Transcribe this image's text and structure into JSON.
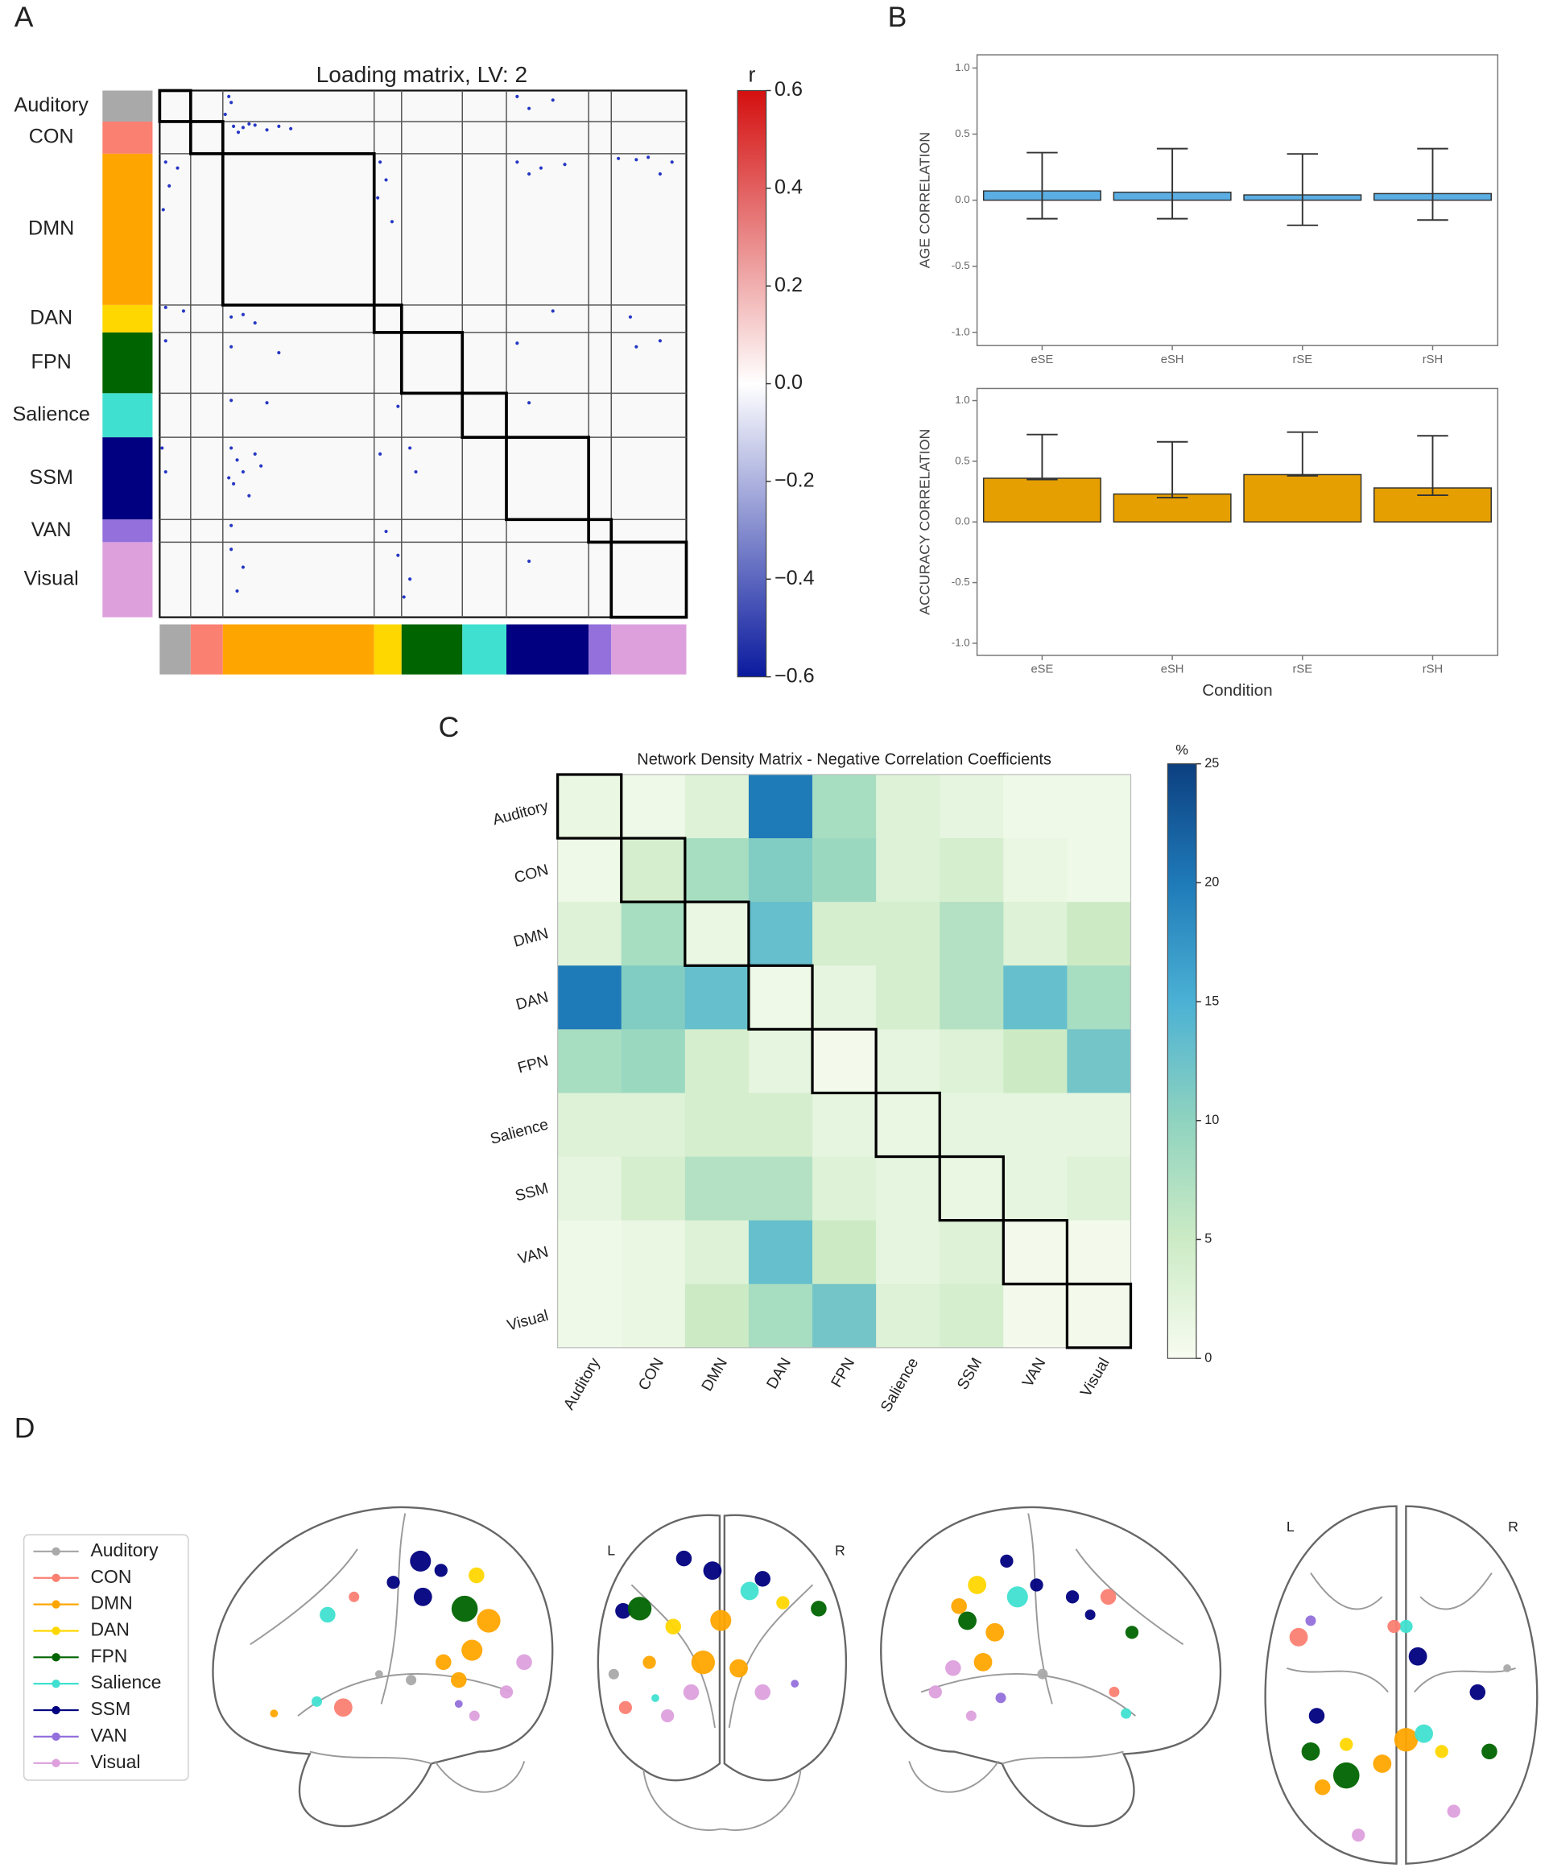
{
  "panel_labels": [
    "A",
    "B",
    "C",
    "D"
  ],
  "chart_data": [
    {
      "type": "matrix",
      "title": "Loading matrix, LV:  2",
      "networks": [
        "Auditory",
        "CON",
        "DMN",
        "DAN",
        "FPN",
        "Salience",
        "SSM",
        "VAN",
        "Visual"
      ],
      "colors": [
        "#a9a9a9",
        "#fa8072",
        "#ffa500",
        "#ffd700",
        "#006400",
        "#40e0d0",
        "#000080",
        "#9370db",
        "#dda0dd"
      ],
      "block_sizes": [
        26,
        27,
        127,
        23,
        51,
        37,
        69,
        19,
        63
      ],
      "points": {
        "row": [
          30,
          31,
          29,
          33,
          30,
          32,
          28,
          35,
          5,
          10,
          20,
          5,
          15,
          8,
          60,
          80,
          100,
          65,
          60,
          75,
          90,
          110,
          60,
          65,
          62,
          70,
          57,
          58,
          56,
          70,
          60,
          182,
          185,
          190,
          188,
          195,
          185,
          190,
          210,
          215,
          220,
          212,
          215,
          210,
          260,
          262,
          265,
          262,
          300,
          310,
          320,
          330,
          340,
          305,
          315,
          325,
          300,
          320,
          305,
          300,
          320,
          365,
          370,
          385,
          400,
          420,
          390,
          410,
          425,
          395
        ],
        "col": [
          62,
          70,
          80,
          90,
          100,
          110,
          75,
          66,
          58,
          60,
          55,
          300,
          310,
          330,
          5,
          8,
          3,
          15,
          185,
          190,
          183,
          195,
          300,
          320,
          340,
          310,
          385,
          400,
          410,
          420,
          430,
          5,
          20,
          60,
          70,
          80,
          330,
          395,
          5,
          60,
          100,
          300,
          400,
          420,
          60,
          90,
          200,
          310,
          60,
          65,
          70,
          62,
          75,
          80,
          85,
          58,
          2,
          5,
          185,
          210,
          215,
          60,
          190,
          60,
          70,
          65,
          200,
          210,
          205,
          310
        ]
      },
      "point_color": "#2536c4",
      "colorbar_label": "r",
      "clim": [
        -0.6,
        0.6
      ],
      "colormap": [
        "#0a1a9e",
        "#ffffff",
        "#d40f0f"
      ],
      "cticks": [
        0.6,
        0.4,
        0.2,
        {
          "value": 0,
          "label": "0.0"
        },
        {
          "value": -0.2,
          "label": "−0.2"
        },
        {
          "value": -0.4,
          "label": "−0.4"
        },
        {
          "value": -0.6,
          "label": "−0.6"
        }
      ]
    },
    {
      "type": "bar",
      "categories": [
        "eSE",
        "eSH",
        "rSE",
        "rSH"
      ],
      "values": [
        0.07,
        0.06,
        0.04,
        0.05
      ],
      "ci_low": [
        -0.14,
        -0.14,
        -0.19,
        -0.15
      ],
      "ci_high": [
        0.36,
        0.39,
        0.35,
        0.39
      ],
      "color": "#5aaee3",
      "y_label": "AGE CORRELATION",
      "ylim": [
        -1.1,
        1.1
      ],
      "yticks": [
        {
          "value": 1,
          "label": "1.0"
        },
        0.5,
        {
          "value": 0,
          "label": "0.0"
        },
        -0.5,
        {
          "value": -1,
          "label": "-1.0"
        }
      ]
    },
    {
      "type": "bar",
      "categories": [
        "eSE",
        "eSH",
        "rSE",
        "rSH"
      ],
      "values": [
        0.36,
        0.23,
        0.39,
        0.28
      ],
      "ci_low": [
        0.35,
        0.2,
        0.38,
        0.22
      ],
      "ci_high": [
        0.72,
        0.66,
        0.74,
        0.71
      ],
      "color": "#e69f00",
      "y_label": "ACCURACY CORRELATION",
      "x_label": "Condition",
      "ylim": [
        -1.1,
        1.1
      ],
      "yticks": [
        {
          "value": 1,
          "label": "1.0"
        },
        0.5,
        {
          "value": 0,
          "label": "0.0"
        },
        -0.5,
        {
          "value": -1,
          "label": "-1.0"
        }
      ]
    },
    {
      "type": "heatmap",
      "title": "Network Density Matrix - Negative Correlation Coefficients",
      "categories": [
        "Auditory",
        "CON",
        "DMN",
        "DAN",
        "FPN",
        "Salience",
        "SSM",
        "VAN",
        "Visual"
      ],
      "values": [
        [
          1.5,
          1,
          3,
          20,
          8,
          3,
          2,
          1,
          1
        ],
        [
          1,
          4,
          8,
          11,
          9,
          3,
          4,
          1.5,
          1
        ],
        [
          3,
          8,
          1.5,
          13,
          4,
          4,
          7,
          3,
          5
        ],
        [
          20,
          11,
          13,
          1,
          2,
          4,
          7,
          13,
          8
        ],
        [
          8,
          9,
          4,
          2,
          0.5,
          2,
          3,
          5,
          12
        ],
        [
          3,
          3,
          4,
          4,
          2,
          1.5,
          2,
          2,
          2
        ],
        [
          2,
          4,
          7,
          7,
          3,
          2,
          1.5,
          2,
          3
        ],
        [
          1,
          1.5,
          3,
          13,
          5,
          2,
          3,
          0.5,
          0.5
        ],
        [
          1,
          1.5,
          5,
          8,
          12,
          3,
          4,
          0.5,
          0.5
        ]
      ],
      "colorbar_label": "%",
      "clim": [
        0,
        25
      ],
      "cticks": [
        0,
        5,
        10,
        15,
        20,
        25
      ],
      "colormap": [
        "#f7fcf0",
        "#ccebc5",
        "#8fd3bf",
        "#4bb1d4",
        "#1f7ab8",
        "#0c3f80"
      ]
    },
    {
      "type": "connectome",
      "networks": [
        "Auditory",
        "CON",
        "DMN",
        "DAN",
        "FPN",
        "Salience",
        "SSM",
        "VAN",
        "Visual"
      ],
      "colors": [
        "#a9a9a9",
        "#fa8072",
        "#ffa500",
        "#ffd700",
        "#006400",
        "#40e0d0",
        "#000080",
        "#9370db",
        "#dda0dd"
      ],
      "xlim": [
        0,
        100
      ],
      "ylim": [
        0,
        100
      ],
      "views": [
        {
          "x": [
            61.6,
            53.8,
            62.3,
            67.5,
            74.3,
            81.2,
            76.4,
            72.6,
            68.2,
            77.7,
            91.4,
            86.3,
            77.1,
            34.9,
            31.8,
            39.4,
            42.5,
            58.9,
            49.7,
            72.6,
            19.5
          ],
          "y": [
            17.3,
            23.7,
            28.1,
            20.1,
            31.7,
            35.3,
            44.2,
            53.2,
            47.8,
            21.6,
            47.8,
            56.8,
            64.0,
            33.5,
            59.7,
            61.5,
            28.1,
            53.2,
            51.4,
            60.4,
            63.3
          ],
          "size": [
            8,
            5,
            7,
            5,
            10,
            9,
            8,
            6,
            6,
            6,
            6,
            5,
            4,
            6,
            4,
            7,
            4,
            4,
            3,
            3,
            3
          ],
          "network": [
            "SSM",
            "SSM",
            "SSM",
            "SSM",
            "FPN",
            "DMN",
            "DMN",
            "DMN",
            "DMN",
            "DAN",
            "Visual",
            "Visual",
            "Visual",
            "Salience",
            "Salience",
            "CON",
            "CON",
            "Auditory",
            "Auditory",
            "VAN",
            "DMN"
          ]
        },
        {
          "labels": [
            "L",
            "R"
          ],
          "x": [
            35.3,
            46.3,
            65.6,
            11.9,
            18.3,
            87.2,
            60.6,
            31.2,
            73.4,
            49.5,
            42.7,
            56.4,
            22,
            38.1,
            65.6,
            29,
            12.8,
            8.3,
            24.3,
            78
          ],
          "y": [
            15.6,
            19.3,
            21.8,
            31.6,
            30.9,
            30.9,
            25.5,
            36.4,
            29.1,
            34.5,
            47.3,
            49.1,
            47.3,
            56.4,
            56.4,
            63.6,
            61.1,
            50.9,
            58.2,
            53.8
          ],
          "size": [
            6,
            7,
            6,
            6,
            9,
            6,
            7,
            6,
            5,
            8,
            9,
            7,
            5,
            6,
            6,
            5,
            5,
            4,
            3,
            3
          ],
          "network": [
            "SSM",
            "SSM",
            "SSM",
            "SSM",
            "FPN",
            "FPN",
            "Salience",
            "DAN",
            "DAN",
            "DMN",
            "DMN",
            "DMN",
            "DMN",
            "Visual",
            "Visual",
            "Visual",
            "CON",
            "Auditory",
            "Salience",
            "VAN"
          ]
        },
        {
          "x": [
            36.6,
            39.7,
            45.2,
            55.5,
            60.6,
            28.1,
            22.9,
            25.3,
            33.2,
            29.8,
            21.2,
            16.1,
            65.8,
            67.5,
            72.6,
            70.9,
            46.9,
            34.9,
            26.4
          ],
          "y": [
            17.3,
            28.1,
            24.5,
            28.1,
            33.5,
            24.5,
            30.9,
            35.3,
            38.8,
            47.8,
            49.6,
            56.8,
            28.1,
            56.8,
            38.8,
            63.3,
            51.4,
            58.6,
            64
          ],
          "size": [
            5,
            8,
            5,
            5,
            4,
            7,
            6,
            7,
            7,
            7,
            6,
            5,
            6,
            4,
            5,
            4,
            4,
            4,
            4
          ],
          "network": [
            "SSM",
            "Salience",
            "SSM",
            "SSM",
            "SSM",
            "DAN",
            "DMN",
            "FPN",
            "DMN",
            "DMN",
            "Visual",
            "Visual",
            "CON",
            "CON",
            "FPN",
            "Salience",
            "Auditory",
            "VAN",
            "Visual"
          ]
        },
        {
          "labels": [
            "L",
            "R"
          ],
          "x": [
            52.2,
            43.5,
            30.4,
            17.4,
            82.6,
            19.6,
            56.5,
            78.3,
            58.7,
            52.2,
            13,
            47.8,
            34.8,
            69.6,
            30.4,
            65.2,
            17.4,
            89.1,
            21.7
          ],
          "y": [
            66,
            72.7,
            76,
            69.3,
            69.3,
            59.3,
            42.7,
            52.7,
            64.3,
            34.3,
            37.3,
            34.3,
            92.7,
            86,
            67.3,
            69.3,
            32.7,
            46,
            79.3
          ],
          "size": [
            9,
            7,
            10,
            7,
            6,
            6,
            7,
            6,
            7,
            5,
            7,
            5,
            5,
            5,
            5,
            5,
            4,
            3,
            6
          ],
          "network": [
            "DMN",
            "DMN",
            "FPN",
            "FPN",
            "FPN",
            "SSM",
            "SSM",
            "SSM",
            "Salience",
            "Salience",
            "CON",
            "CON",
            "Visual",
            "Visual",
            "DAN",
            "DAN",
            "VAN",
            "Auditory",
            "DMN"
          ]
        }
      ]
    }
  ]
}
